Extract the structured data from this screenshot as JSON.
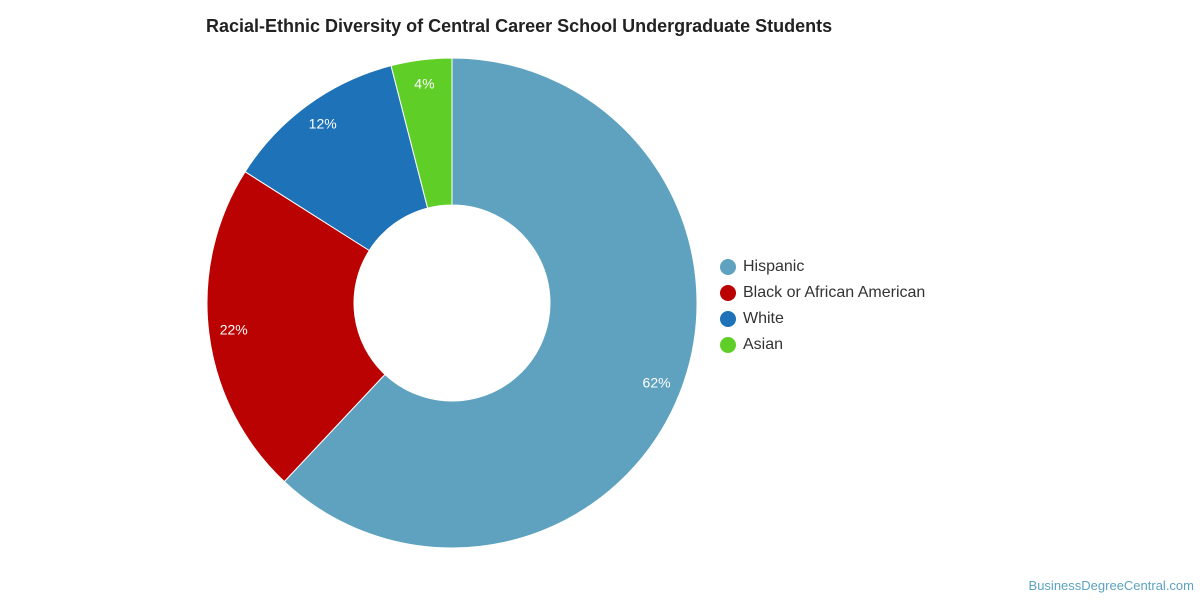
{
  "chart_data": {
    "type": "pie",
    "title": "Racial-Ethnic Diversity of Central Career School Undergraduate Students",
    "hole": true,
    "legend_position": "right",
    "categories": [
      "Hispanic",
      "Black or African American",
      "White",
      "Asian"
    ],
    "values": [
      62,
      22,
      12,
      4
    ],
    "data_labels": [
      "62%",
      "22%",
      "12%",
      "4%"
    ],
    "colors": [
      "#5ea2bf",
      "#bb0202",
      "#1e72b8",
      "#5fcf27"
    ]
  },
  "watermark": "BusinessDegreeCentral.com"
}
